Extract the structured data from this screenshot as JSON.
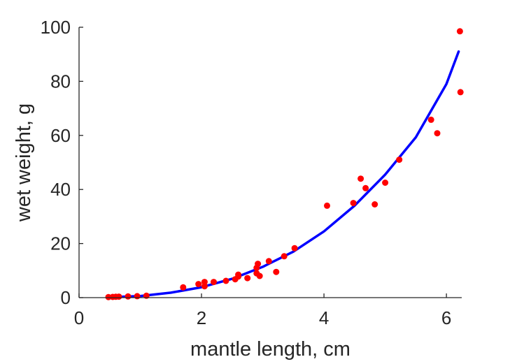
{
  "chart_data": {
    "type": "scatter",
    "title": "",
    "xlabel": "mantle length, cm",
    "ylabel": "wet weight, g",
    "xlim": [
      0,
      6.25
    ],
    "ylim": [
      0,
      100
    ],
    "x_ticks": [
      0,
      2,
      4,
      6
    ],
    "y_ticks": [
      0,
      20,
      40,
      60,
      80,
      100
    ],
    "grid": false,
    "legend": "none",
    "series": [
      {
        "kind": "scatter",
        "color": "#ff0000",
        "points": [
          [
            0.48,
            0.2
          ],
          [
            0.55,
            0.25
          ],
          [
            0.6,
            0.3
          ],
          [
            0.65,
            0.35
          ],
          [
            0.8,
            0.45
          ],
          [
            0.95,
            0.55
          ],
          [
            1.1,
            0.7
          ],
          [
            1.7,
            3.8
          ],
          [
            1.95,
            5.0
          ],
          [
            2.05,
            4.2
          ],
          [
            2.05,
            5.8
          ],
          [
            2.2,
            5.8
          ],
          [
            2.4,
            6.2
          ],
          [
            2.55,
            6.8
          ],
          [
            2.6,
            7.8
          ],
          [
            2.6,
            8.5
          ],
          [
            2.75,
            7.2
          ],
          [
            2.9,
            9.0
          ],
          [
            2.9,
            11.0
          ],
          [
            2.92,
            12.5
          ],
          [
            2.95,
            8.0
          ],
          [
            3.1,
            13.5
          ],
          [
            3.22,
            9.5
          ],
          [
            3.35,
            15.3
          ],
          [
            3.52,
            18.3
          ],
          [
            4.05,
            34.0
          ],
          [
            4.48,
            35.0
          ],
          [
            4.6,
            44.0
          ],
          [
            4.68,
            40.5
          ],
          [
            4.83,
            34.5
          ],
          [
            5.0,
            42.5
          ],
          [
            5.23,
            51.0
          ],
          [
            5.75,
            65.8
          ],
          [
            5.85,
            60.8
          ],
          [
            6.22,
            98.5
          ],
          [
            6.23,
            76.0
          ]
        ]
      },
      {
        "kind": "line",
        "color": "#0000ff",
        "points": [
          [
            0.5,
            0.15
          ],
          [
            1.0,
            0.59
          ],
          [
            1.5,
            1.84
          ],
          [
            2.0,
            3.85
          ],
          [
            2.5,
            6.96
          ],
          [
            3.0,
            11.4
          ],
          [
            3.5,
            17.0
          ],
          [
            4.0,
            24.5
          ],
          [
            4.5,
            34.0
          ],
          [
            5.0,
            45.5
          ],
          [
            5.5,
            59.3
          ],
          [
            6.0,
            79.0
          ],
          [
            6.2,
            91.0
          ]
        ]
      }
    ]
  }
}
